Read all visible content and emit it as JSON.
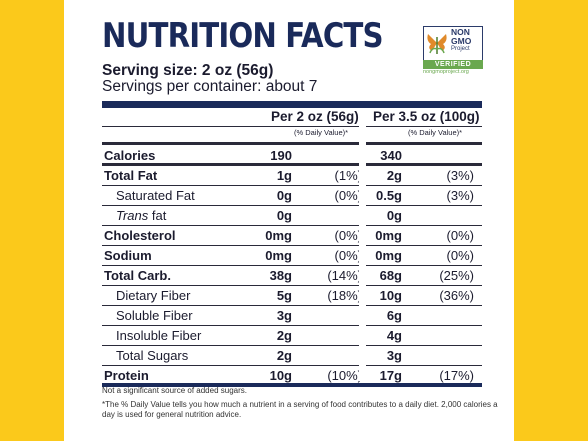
{
  "title": "NUTRITION FACTS",
  "serving_size": "Serving size: 2 oz (56g)",
  "servings": "Servings per container: about 7",
  "badge": {
    "non": "NON",
    "gmo": "GMO",
    "project": "Project",
    "verified": "VERIFIED",
    "url": "nongmoproject.org"
  },
  "columns": {
    "per2": "Per 2 oz (56g)",
    "per35": "Per 3.5 oz (100g)",
    "dv": "(% Daily Value)*"
  },
  "rows": [
    {
      "label": "Calories",
      "style": "bold",
      "a": "190",
      "ap": "",
      "b": "340",
      "bp": ""
    },
    {
      "label": "Total Fat",
      "style": "bold",
      "a": "1g",
      "ap": "(1%)",
      "b": "2g",
      "bp": "(3%)"
    },
    {
      "label": "Saturated Fat",
      "style": "indent",
      "a": "0g",
      "ap": "(0%)",
      "b": "0.5g",
      "bp": "(3%)"
    },
    {
      "label": "Trans fat",
      "style": "indent",
      "a": "0g",
      "ap": "",
      "b": "0g",
      "bp": ""
    },
    {
      "label": "Cholesterol",
      "style": "bold",
      "a": "0mg",
      "ap": "(0%)",
      "b": "0mg",
      "bp": "(0%)"
    },
    {
      "label": "Sodium",
      "style": "bold",
      "a": "0mg",
      "ap": "(0%)",
      "b": "0mg",
      "bp": "(0%)"
    },
    {
      "label": "Total Carb.",
      "style": "bold",
      "a": "38g",
      "ap": "(14%)",
      "b": "68g",
      "bp": "(25%)"
    },
    {
      "label": "Dietary Fiber",
      "style": "indent",
      "a": "5g",
      "ap": "(18%)",
      "b": "10g",
      "bp": "(36%)"
    },
    {
      "label": "Soluble Fiber",
      "style": "indent",
      "a": "3g",
      "ap": "",
      "b": "6g",
      "bp": ""
    },
    {
      "label": "Insoluble Fiber",
      "style": "indent",
      "a": "2g",
      "ap": "",
      "b": "4g",
      "bp": ""
    },
    {
      "label": "Total Sugars",
      "style": "indent",
      "a": "2g",
      "ap": "",
      "b": "3g",
      "bp": ""
    },
    {
      "label": "Protein",
      "style": "bold",
      "a": "10g",
      "ap": "(10%)",
      "b": "17g",
      "bp": "(17%)"
    }
  ],
  "note1": "Not a significant source of added sugars.",
  "note2": "*The % Daily Value tells you how much a nutrient in a serving of food contributes to a daily diet. 2,000 calories a day is used for general nutrition advice.",
  "colors": {
    "navy": "#1a2a5a",
    "yellow": "#fbc91b",
    "green": "#6aa84f"
  }
}
